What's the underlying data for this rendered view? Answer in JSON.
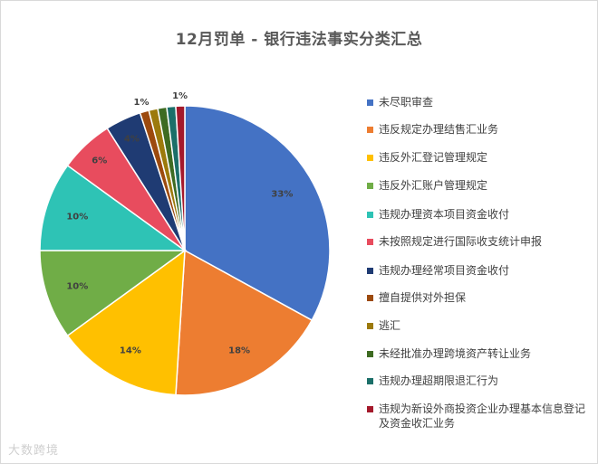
{
  "chart_data": {
    "type": "pie",
    "title": "12月罚单 - 银行违法事实分类汇总",
    "legend_position": "right",
    "start_angle_deg": 0,
    "direction": "clockwise",
    "slices": [
      {
        "name": "未尽职审查",
        "value": 33,
        "label": "33%",
        "color": "#4472C4"
      },
      {
        "name": "违反规定办理结售汇业务",
        "value": 18,
        "label": "18%",
        "color": "#ED7D31"
      },
      {
        "name": "违反外汇登记管理规定",
        "value": 14,
        "label": "14%",
        "color": "#FFC000"
      },
      {
        "name": "违反外汇账户管理规定",
        "value": 10,
        "label": "10%",
        "color": "#70AD47"
      },
      {
        "name": "违规办理资本项目资金收付",
        "value": 10,
        "label": "10%",
        "color": "#2EC3B5"
      },
      {
        "name": "未按照规定进行国际收支统计申报",
        "value": 6,
        "label": "6%",
        "color": "#E84C5E"
      },
      {
        "name": "违规办理经常项目资金收付",
        "value": 4,
        "label": "4%",
        "color": "#1F3B73"
      },
      {
        "name": "擅自提供对外担保",
        "value": 1,
        "label": "1%",
        "color": "#9C4A0E"
      },
      {
        "name": "逃汇",
        "value": 1,
        "label": "",
        "color": "#9C7A0C"
      },
      {
        "name": "未经批准办理跨境资产转让业务",
        "value": 1,
        "label": "",
        "color": "#3E6B22"
      },
      {
        "name": "违规办理超期限退汇行为",
        "value": 1,
        "label": "",
        "color": "#1B6F69"
      },
      {
        "name": "违规为新设外商投资企业办理基本信息登记及资金收汇业务",
        "value": 1,
        "label": "1%",
        "color": "#A4192B"
      }
    ]
  },
  "watermark": "大数跨境"
}
